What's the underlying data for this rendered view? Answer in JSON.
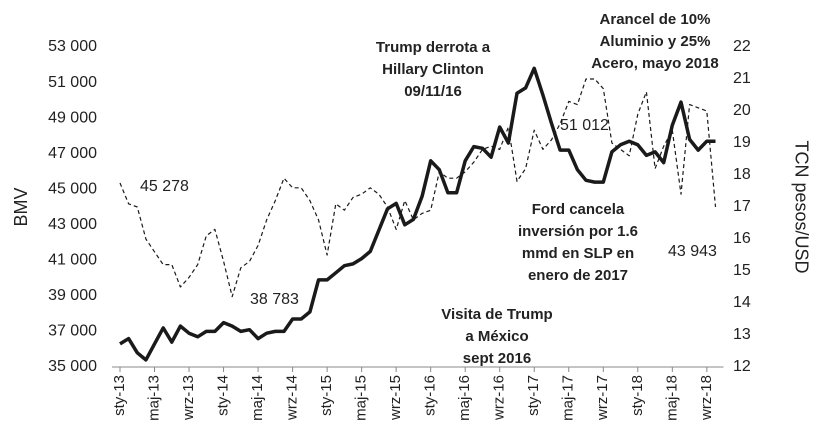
{
  "chart_data": {
    "type": "line",
    "y_label": "BMV",
    "y2_label": "TCN pesos/USD",
    "categories": [
      "sty-13",
      null,
      null,
      null,
      "maj-13",
      null,
      null,
      null,
      "wrz-13",
      null,
      null,
      null,
      "sty-14",
      null,
      null,
      null,
      "maj-14",
      null,
      null,
      null,
      "wrz-14",
      null,
      null,
      null,
      "sty-15",
      null,
      null,
      null,
      "maj-15",
      null,
      null,
      null,
      "wrz-15",
      null,
      null,
      null,
      "sty-16",
      null,
      null,
      null,
      "maj-16",
      null,
      null,
      null,
      "wrz-16",
      null,
      null,
      null,
      "sty-17",
      null,
      null,
      null,
      "maj-17",
      null,
      null,
      null,
      "wrz-17",
      null,
      null,
      null,
      "sty-18",
      null,
      null,
      null,
      "maj-18",
      null,
      null,
      null,
      "wrz-18",
      null
    ],
    "series": [
      {
        "color": "#1a1a1a",
        "line_style": "solid",
        "axis": "y",
        "values": [
          36300,
          36600,
          35800,
          35400,
          36300,
          37200,
          36400,
          37300,
          36900,
          36700,
          37000,
          37000,
          37500,
          37300,
          37000,
          37100,
          36600,
          36900,
          37000,
          37000,
          37700,
          37700,
          38100,
          39900,
          39900,
          40300,
          40700,
          40800,
          41100,
          41500,
          42700,
          43900,
          44200,
          43000,
          43300,
          44600,
          46600,
          46100,
          44800,
          44800,
          46600,
          47400,
          47300,
          46800,
          48500,
          47600,
          50400,
          50700,
          51800,
          50300,
          48700,
          47200,
          47200,
          46100,
          45500,
          45400,
          45400,
          47100,
          47500,
          47700,
          47500,
          46900,
          47100,
          46500,
          48600,
          49900,
          47800,
          47200,
          47700,
          47700
        ]
      },
      {
        "color": "#1a1a1a",
        "line_style": "dashed",
        "axis": "y2",
        "values": [
          17.75,
          17.1,
          17.0,
          16.0,
          15.6,
          15.2,
          15.2,
          14.5,
          14.8,
          15.2,
          16.1,
          16.3,
          15.3,
          14.2,
          15.1,
          15.3,
          15.8,
          16.6,
          17.2,
          17.9,
          17.6,
          17.6,
          17.2,
          16.6,
          15.5,
          17.1,
          16.9,
          17.3,
          17.4,
          17.6,
          17.4,
          17.0,
          16.3,
          17.2,
          16.6,
          16.8,
          16.9,
          18.1,
          17.9,
          17.9,
          18.1,
          18.4,
          18.8,
          18.9,
          18.8,
          19.5,
          17.8,
          18.2,
          19.4,
          18.8,
          19.1,
          19.6,
          20.3,
          20.2,
          21.0,
          21.0,
          20.7,
          19.0,
          18.8,
          18.6,
          19.9,
          20.6,
          18.2,
          18.9,
          19.4,
          17.4,
          20.2,
          20.1,
          20.0,
          17.0
        ]
      }
    ],
    "ylim": [
      35000,
      53000
    ],
    "yticks": [
      {
        "value": 35000,
        "label": "35 000"
      },
      {
        "value": 37000,
        "label": "37 000"
      },
      {
        "value": 39000,
        "label": "39 000"
      },
      {
        "value": 41000,
        "label": "41 000"
      },
      {
        "value": 43000,
        "label": "43 000"
      },
      {
        "value": 45000,
        "label": "45 000"
      },
      {
        "value": 47000,
        "label": "47 000"
      },
      {
        "value": 49000,
        "label": "49 000"
      },
      {
        "value": 51000,
        "label": "51 000"
      },
      {
        "value": 53000,
        "label": "53 000"
      }
    ],
    "y2lim": [
      12,
      22
    ],
    "y2ticks": [
      12,
      13,
      14,
      15,
      16,
      17,
      18,
      19,
      20,
      21,
      22
    ],
    "annotations": [
      {
        "lines": [
          "45 278"
        ],
        "bold": false
      },
      {
        "lines": [
          "38 783"
        ],
        "bold": false
      },
      {
        "lines": [
          "51 012"
        ],
        "bold": false
      },
      {
        "lines": [
          "43 943"
        ],
        "bold": false
      },
      {
        "lines": [
          "Trump derrota a",
          "Hillary Clinton",
          "09/11/16"
        ],
        "bold": true
      },
      {
        "lines": [
          "Arancel de 10%",
          "Aluminio y 25%",
          "Acero, mayo 2018"
        ],
        "bold": true
      },
      {
        "lines": [
          "Ford cancela",
          "inversión por 1.6",
          "mmd en SLP en",
          "enero de 2017"
        ],
        "bold": true
      },
      {
        "lines": [
          "Visita de Trump",
          "a México",
          "sept 2016"
        ],
        "bold": true
      }
    ]
  }
}
